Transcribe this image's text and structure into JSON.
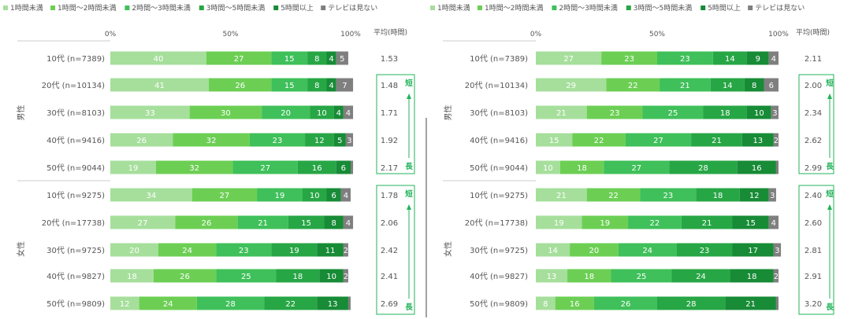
{
  "legend": [
    {
      "label": "1時間未満",
      "color": "#a6df9c"
    },
    {
      "label": "1時間〜2時間未満",
      "color": "#6ccf54"
    },
    {
      "label": "2時間〜3時間未満",
      "color": "#3fc05a"
    },
    {
      "label": "3時間〜5時間未満",
      "color": "#27a645"
    },
    {
      "label": "5時間以上",
      "color": "#178b36"
    },
    {
      "label": "テレビは見ない",
      "color": "#7f7f7f"
    }
  ],
  "axis_ticks": [
    "0%",
    "50%",
    "100%"
  ],
  "avg_header": "平均(時間)",
  "group_labels": [
    "男性",
    "女性"
  ],
  "arrow_labels": {
    "short": "短",
    "long": "長"
  },
  "chart_data": [
    {
      "type": "bar",
      "stacked": "horizontal-100%",
      "categories": [
        "10代 (n=7389)",
        "20代 (n=10134)",
        "30代 (n=8103)",
        "40代 (n=9416)",
        "50代 (n=9044)",
        "10代 (n=9275)",
        "20代 (n=17738)",
        "30代 (n=9725)",
        "40代 (n=9827)",
        "50代 (n=9809)"
      ],
      "groups": [
        {
          "label": "男性",
          "rows": [
            0,
            4
          ]
        },
        {
          "label": "女性",
          "rows": [
            5,
            9
          ]
        }
      ],
      "series": [
        {
          "name": "1時間未満",
          "values": [
            40,
            41,
            33,
            26,
            19,
            34,
            27,
            20,
            18,
            12
          ]
        },
        {
          "name": "1時間〜2時間未満",
          "values": [
            27,
            26,
            30,
            32,
            32,
            27,
            26,
            24,
            26,
            24
          ]
        },
        {
          "name": "2時間〜3時間未満",
          "values": [
            15,
            15,
            20,
            23,
            27,
            19,
            21,
            23,
            25,
            28
          ]
        },
        {
          "name": "3時間〜5時間未満",
          "values": [
            8,
            8,
            10,
            12,
            16,
            10,
            15,
            19,
            18,
            22
          ]
        },
        {
          "name": "5時間以上",
          "values": [
            4,
            4,
            4,
            5,
            6,
            6,
            8,
            11,
            10,
            13
          ]
        },
        {
          "name": "テレビは見ない",
          "values": [
            5,
            7,
            4,
            3,
            1,
            4,
            4,
            2,
            2,
            1
          ]
        }
      ],
      "averages": [
        "1.53",
        "1.48",
        "1.71",
        "1.92",
        "2.17",
        "1.78",
        "2.06",
        "2.42",
        "2.41",
        "2.69"
      ],
      "xlim": [
        0,
        100
      ]
    },
    {
      "type": "bar",
      "stacked": "horizontal-100%",
      "categories": [
        "10代 (n=7389)",
        "20代 (n=10134)",
        "30代 (n=8103)",
        "40代 (n=9416)",
        "50代 (n=9044)",
        "10代 (n=9275)",
        "20代 (n=17738)",
        "30代 (n=9725)",
        "40代 (n=9827)",
        "50代 (n=9809)"
      ],
      "groups": [
        {
          "label": "男性",
          "rows": [
            0,
            4
          ]
        },
        {
          "label": "女性",
          "rows": [
            5,
            9
          ]
        }
      ],
      "series": [
        {
          "name": "1時間未満",
          "values": [
            27,
            29,
            21,
            15,
            10,
            21,
            19,
            14,
            13,
            8
          ]
        },
        {
          "name": "1時間〜2時間未満",
          "values": [
            23,
            22,
            23,
            22,
            18,
            22,
            19,
            20,
            18,
            16
          ]
        },
        {
          "name": "2時間〜3時間未満",
          "values": [
            23,
            21,
            25,
            27,
            27,
            23,
            22,
            24,
            25,
            26
          ]
        },
        {
          "name": "3時間〜5時間未満",
          "values": [
            14,
            14,
            18,
            21,
            28,
            18,
            21,
            23,
            24,
            28
          ]
        },
        {
          "name": "5時間以上",
          "values": [
            9,
            8,
            10,
            13,
            16,
            12,
            15,
            17,
            18,
            21
          ]
        },
        {
          "name": "テレビは見ない",
          "values": [
            4,
            6,
            3,
            2,
            1,
            3,
            4,
            3,
            2,
            1
          ]
        }
      ],
      "averages": [
        "2.11",
        "2.00",
        "2.34",
        "2.62",
        "2.99",
        "2.40",
        "2.60",
        "2.81",
        "2.91",
        "3.20"
      ],
      "xlim": [
        0,
        100
      ]
    }
  ]
}
